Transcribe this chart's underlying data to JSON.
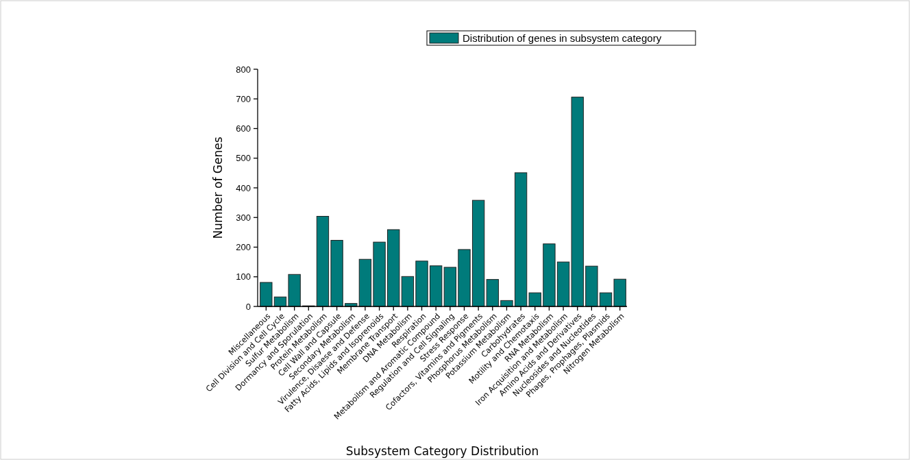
{
  "chart_data": {
    "type": "bar",
    "xlabel": "Subsystem Category Distribution",
    "ylabel": "Number of Genes",
    "categories": [
      "Miscellaneous",
      "Cell Division and Cell Cycle",
      "Sulfur Metabolism",
      "Dormancy and Sporulation",
      "Protein Metabolism",
      "Cell Wall and Capsule",
      "Secondary Metabolism",
      "Virulence, Disaese and Defense",
      "Fatty Acids, Lipids and Isoprenoids",
      "Membrane Transport",
      "DNA Metabolism",
      "Respiration",
      "Metaboilsm and Aromatic Compound",
      "Regulation and Cell Signaling",
      "Stress Response",
      "Cofactors, Vitamins and Pigments",
      "Phosphorus Metabolism",
      "Potassium Metabolism",
      "Carbohydrates",
      "Motility and Chemotaxis",
      "RNA Metabolism",
      "Iron Acquisition and Metabolism",
      "Amino Acids and Derivatives",
      "Nucleosides and Nucleotides",
      "Phages, Prophages, Plasmids",
      "Nitrogen Metabolism"
    ],
    "series": [
      {
        "name": "Distribution of genes in subsystem category",
        "color": "#007b7b",
        "values": [
          81,
          32,
          108,
          2,
          304,
          223,
          10,
          159,
          217,
          259,
          101,
          153,
          137,
          132,
          192,
          358,
          91,
          20,
          451,
          46,
          211,
          150,
          706,
          136,
          46,
          92
        ]
      }
    ],
    "ylim": [
      0,
      800
    ],
    "yticks": [
      0,
      100,
      200,
      300,
      400,
      500,
      600,
      700,
      800
    ],
    "grid": false,
    "legend": "top right"
  }
}
